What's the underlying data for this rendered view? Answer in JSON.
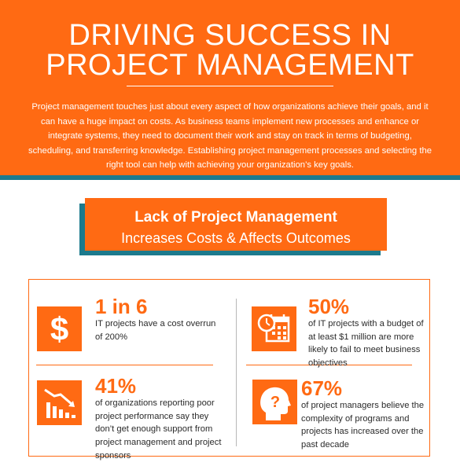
{
  "header": {
    "title_lines": [
      "DRIVING SUCCESS IN",
      "PROJECT MANAGEMENT"
    ],
    "intro": "Project management touches just about every aspect of how organizations achieve their goals, and it can have a huge impact on costs. As business teams implement new processes and enhance or integrate systems, they need to document their work and stay on track in terms of budgeting, scheduling, and transferring knowledge. Establishing project management processes and selecting the right tool can help with achieving your organization’s key goals."
  },
  "banner": {
    "title": "Lack of Project Management",
    "subtitle": "Increases Costs & Affects Outcomes"
  },
  "stats": [
    {
      "icon": "dollar-icon",
      "value": "1 in 6",
      "text": "IT projects have a cost overrun of 200%"
    },
    {
      "icon": "calendar-clock-icon",
      "value": "50%",
      "text": "of IT projects with a budget of at least $1 million are more likely to fail to meet business objectives"
    },
    {
      "icon": "declining-chart-icon",
      "value": "41%",
      "text": "of organizations reporting poor project performance say they don’t get enough support from project management and project sponsors"
    },
    {
      "icon": "question-head-icon",
      "value": "67%",
      "text": "of project managers believe the complexity of programs and projects has increased over the past decade"
    }
  ],
  "colors": {
    "accent": "#ff6a13",
    "teal": "#1c7a8d",
    "text": "#2b2b2b"
  }
}
